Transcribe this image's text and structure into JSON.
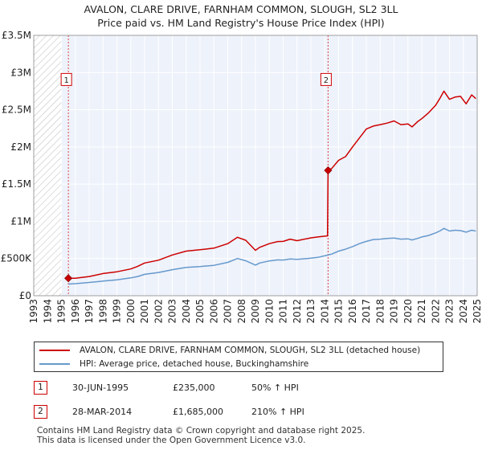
{
  "title_line1": "AVALON, CLARE DRIVE, FARNHAM COMMON, SLOUGH, SL2 3LL",
  "title_line2": "Price paid vs. HM Land Registry's House Price Index (HPI)",
  "chart_data": {
    "type": "line",
    "title": "AVALON, CLARE DRIVE, FARNHAM COMMON, SLOUGH, SL2 3LL — Price paid vs. HM Land Registry's House Price Index (HPI)",
    "xlim": [
      1993,
      2025
    ],
    "ylim": [
      0,
      3500000
    ],
    "x_ticks": [
      1993,
      1994,
      1995,
      1996,
      1997,
      1998,
      1999,
      2000,
      2001,
      2002,
      2003,
      2004,
      2005,
      2006,
      2007,
      2008,
      2009,
      2010,
      2011,
      2012,
      2013,
      2014,
      2015,
      2016,
      2017,
      2018,
      2019,
      2020,
      2021,
      2022,
      2023,
      2024,
      2025
    ],
    "y_ticks": [
      {
        "value": 0,
        "label": "£0"
      },
      {
        "value": 500000,
        "label": "£500K"
      },
      {
        "value": 1000000,
        "label": "£1M"
      },
      {
        "value": 1500000,
        "label": "£1.5M"
      },
      {
        "value": 2000000,
        "label": "£2M"
      },
      {
        "value": 2500000,
        "label": "£2.5M"
      },
      {
        "value": 3000000,
        "label": "£3M"
      },
      {
        "value": 3500000,
        "label": "£3.5M"
      }
    ],
    "series": [
      {
        "name": "AVALON, CLARE DRIVE, FARNHAM COMMON, SLOUGH, SL2 3LL (detached house)",
        "color": "#cc0000",
        "x": [
          1995.5,
          1996,
          1997,
          1998,
          1999,
          2000,
          2000.5,
          2001,
          2002,
          2003,
          2004,
          2005,
          2006,
          2007,
          2007.7,
          2008.3,
          2009,
          2009.3,
          2010,
          2010.6,
          2011,
          2011.5,
          2012,
          2013,
          2013.5,
          2014.2,
          2014.24,
          2014.5,
          2015,
          2015.5,
          2016,
          2016.5,
          2017,
          2017.5,
          2018,
          2018.5,
          2019,
          2019.5,
          2020,
          2020.3,
          2020.7,
          2021,
          2021.5,
          2022,
          2022.3,
          2022.6,
          2023,
          2023.4,
          2023.8,
          2024.2,
          2024.6,
          2024.9
        ],
        "values": [
          235000,
          235000,
          258000,
          298000,
          322000,
          360000,
          395000,
          440000,
          478000,
          548000,
          600000,
          618000,
          640000,
          700000,
          785000,
          745000,
          610000,
          650000,
          700000,
          728000,
          730000,
          760000,
          740000,
          778000,
          790000,
          805000,
          1685000,
          1710000,
          1820000,
          1870000,
          2000000,
          2120000,
          2240000,
          2280000,
          2300000,
          2320000,
          2350000,
          2300000,
          2310000,
          2270000,
          2340000,
          2380000,
          2460000,
          2560000,
          2650000,
          2750000,
          2640000,
          2670000,
          2680000,
          2580000,
          2700000,
          2650000
        ]
      },
      {
        "name": "HPI: Average price, detached house, Buckinghamshire",
        "color": "#6699cc",
        "x": [
          1995.5,
          1996,
          1997,
          1998,
          1999,
          2000,
          2000.5,
          2001,
          2002,
          2003,
          2004,
          2005,
          2006,
          2007,
          2007.7,
          2008.3,
          2009,
          2009.3,
          2010,
          2010.6,
          2011,
          2011.5,
          2012,
          2013,
          2013.5,
          2014.2,
          2014.5,
          2015,
          2015.5,
          2016,
          2016.5,
          2017,
          2017.5,
          2018,
          2018.5,
          2019,
          2019.5,
          2020,
          2020.3,
          2020.7,
          2021,
          2021.5,
          2022,
          2022.3,
          2022.6,
          2023,
          2023.4,
          2023.8,
          2024.2,
          2024.6,
          2024.9
        ],
        "values": [
          157000,
          162000,
          178000,
          197000,
          213000,
          240000,
          258000,
          287000,
          312000,
          350000,
          380000,
          392000,
          408000,
          448000,
          500000,
          470000,
          412000,
          440000,
          468000,
          482000,
          480000,
          495000,
          488000,
          505000,
          515000,
          545000,
          560000,
          600000,
          625000,
          660000,
          700000,
          730000,
          755000,
          760000,
          770000,
          775000,
          760000,
          765000,
          750000,
          770000,
          790000,
          810000,
          845000,
          870000,
          905000,
          870000,
          880000,
          875000,
          855000,
          880000,
          870000
        ]
      }
    ],
    "sale_points": [
      {
        "label": "1",
        "x": 1995.5,
        "value": 235000
      },
      {
        "label": "2",
        "x": 2014.24,
        "value": 1685000
      }
    ],
    "legend": [
      {
        "label": "AVALON, CLARE DRIVE, FARNHAM COMMON, SLOUGH, SL2 3LL (detached house)",
        "color": "#cc0000"
      },
      {
        "label": "HPI: Average price, detached house, Buckinghamshire",
        "color": "#6699cc"
      }
    ]
  },
  "sales": [
    {
      "num": "1",
      "date": "30-JUN-1995",
      "price": "£235,000",
      "hpi": "50% ↑ HPI"
    },
    {
      "num": "2",
      "date": "28-MAR-2014",
      "price": "£1,685,000",
      "hpi": "210% ↑ HPI"
    }
  ],
  "footer_line1": "Contains HM Land Registry data © Crown copyright and database right 2025.",
  "footer_line2": "This data is licensed under the Open Government Licence v3.0."
}
